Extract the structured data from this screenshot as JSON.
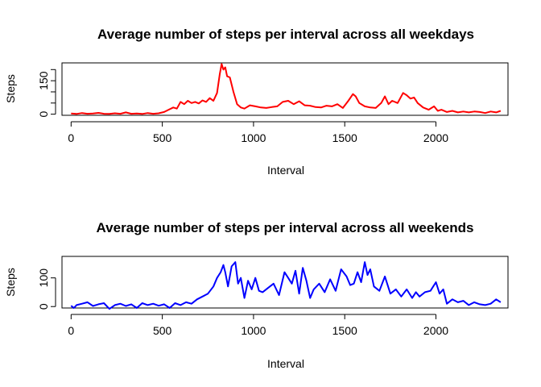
{
  "chart_data": [
    {
      "type": "line",
      "title": "Average number of steps per interval across all weekdays",
      "xlabel": "Interval",
      "ylabel": "Steps",
      "xlim": [
        -50,
        2395
      ],
      "ylim": [
        -5,
        230
      ],
      "xticks": [
        0,
        500,
        1000,
        1500,
        2000
      ],
      "yticks": [
        0,
        50,
        100,
        150,
        200
      ],
      "ytick_labels": [
        "0",
        "",
        "",
        "150",
        ""
      ],
      "color": "#ff0000",
      "grid": false,
      "series": [
        {
          "x": [
            0,
            30,
            60,
            90,
            120,
            150,
            180,
            210,
            240,
            270,
            300,
            330,
            360,
            390,
            420,
            450,
            480,
            510,
            540,
            560,
            580,
            600,
            620,
            640,
            660,
            680,
            700,
            720,
            740,
            760,
            780,
            800,
            815,
            825,
            835,
            845,
            855,
            870,
            890,
            910,
            930,
            950,
            980,
            1010,
            1040,
            1070,
            1100,
            1130,
            1160,
            1190,
            1220,
            1250,
            1280,
            1310,
            1340,
            1370,
            1400,
            1430,
            1460,
            1490,
            1520,
            1545,
            1560,
            1580,
            1610,
            1640,
            1670,
            1700,
            1720,
            1740,
            1760,
            1790,
            1820,
            1840,
            1860,
            1880,
            1900,
            1930,
            1960,
            1990,
            2010,
            2030,
            2060,
            2090,
            2120,
            2150,
            2180,
            2210,
            2240,
            2270,
            2300,
            2330,
            2355
          ],
          "y": [
            3,
            1,
            5,
            2,
            3,
            6,
            2,
            1,
            4,
            2,
            8,
            2,
            3,
            1,
            5,
            2,
            4,
            10,
            22,
            30,
            25,
            55,
            45,
            60,
            50,
            55,
            48,
            62,
            55,
            72,
            60,
            95,
            180,
            225,
            200,
            210,
            170,
            165,
            100,
            45,
            30,
            25,
            40,
            35,
            30,
            28,
            32,
            35,
            55,
            60,
            45,
            58,
            40,
            38,
            32,
            30,
            38,
            35,
            45,
            28,
            60,
            90,
            80,
            50,
            35,
            30,
            28,
            50,
            80,
            45,
            60,
            50,
            95,
            85,
            70,
            75,
            50,
            30,
            20,
            35,
            15,
            20,
            10,
            15,
            8,
            12,
            8,
            12,
            10,
            5,
            12,
            8,
            15
          ]
        }
      ]
    },
    {
      "type": "line",
      "title": "Average number of steps per interval across all weekends",
      "xlabel": "Interval",
      "ylabel": "Steps",
      "xlim": [
        -50,
        2395
      ],
      "ylim": [
        -5,
        175
      ],
      "xticks": [
        0,
        500,
        1000,
        1500,
        2000
      ],
      "yticks": [
        0,
        100
      ],
      "ytick_labels": [
        "0",
        "100"
      ],
      "color": "#0000ff",
      "grid": false,
      "series": [
        {
          "x": [
            0,
            15,
            30,
            60,
            90,
            120,
            150,
            180,
            210,
            240,
            270,
            300,
            330,
            360,
            390,
            420,
            450,
            480,
            510,
            540,
            570,
            600,
            630,
            660,
            690,
            720,
            750,
            780,
            800,
            820,
            835,
            845,
            860,
            880,
            900,
            915,
            930,
            950,
            970,
            990,
            1010,
            1030,
            1050,
            1080,
            1110,
            1140,
            1170,
            1190,
            1210,
            1230,
            1250,
            1270,
            1290,
            1310,
            1330,
            1360,
            1390,
            1420,
            1450,
            1480,
            1510,
            1530,
            1550,
            1570,
            1590,
            1610,
            1625,
            1640,
            1660,
            1690,
            1720,
            1750,
            1780,
            1810,
            1840,
            1870,
            1890,
            1910,
            1940,
            1970,
            2000,
            2020,
            2040,
            2060,
            2090,
            2120,
            2150,
            2180,
            2210,
            2240,
            2270,
            2300,
            2330,
            2355
          ],
          "y": [
            3,
            -5,
            5,
            10,
            15,
            2,
            8,
            12,
            -8,
            5,
            10,
            2,
            8,
            -5,
            12,
            5,
            10,
            3,
            8,
            -5,
            12,
            5,
            15,
            10,
            25,
            35,
            45,
            70,
            100,
            120,
            145,
            120,
            70,
            140,
            155,
            80,
            100,
            30,
            90,
            60,
            100,
            55,
            50,
            65,
            80,
            40,
            120,
            100,
            80,
            125,
            45,
            135,
            90,
            30,
            60,
            80,
            50,
            95,
            55,
            130,
            105,
            75,
            80,
            120,
            85,
            155,
            110,
            130,
            70,
            55,
            105,
            45,
            60,
            35,
            60,
            30,
            50,
            35,
            50,
            55,
            85,
            45,
            60,
            10,
            25,
            15,
            20,
            5,
            15,
            8,
            5,
            10,
            25,
            15
          ]
        }
      ]
    }
  ]
}
